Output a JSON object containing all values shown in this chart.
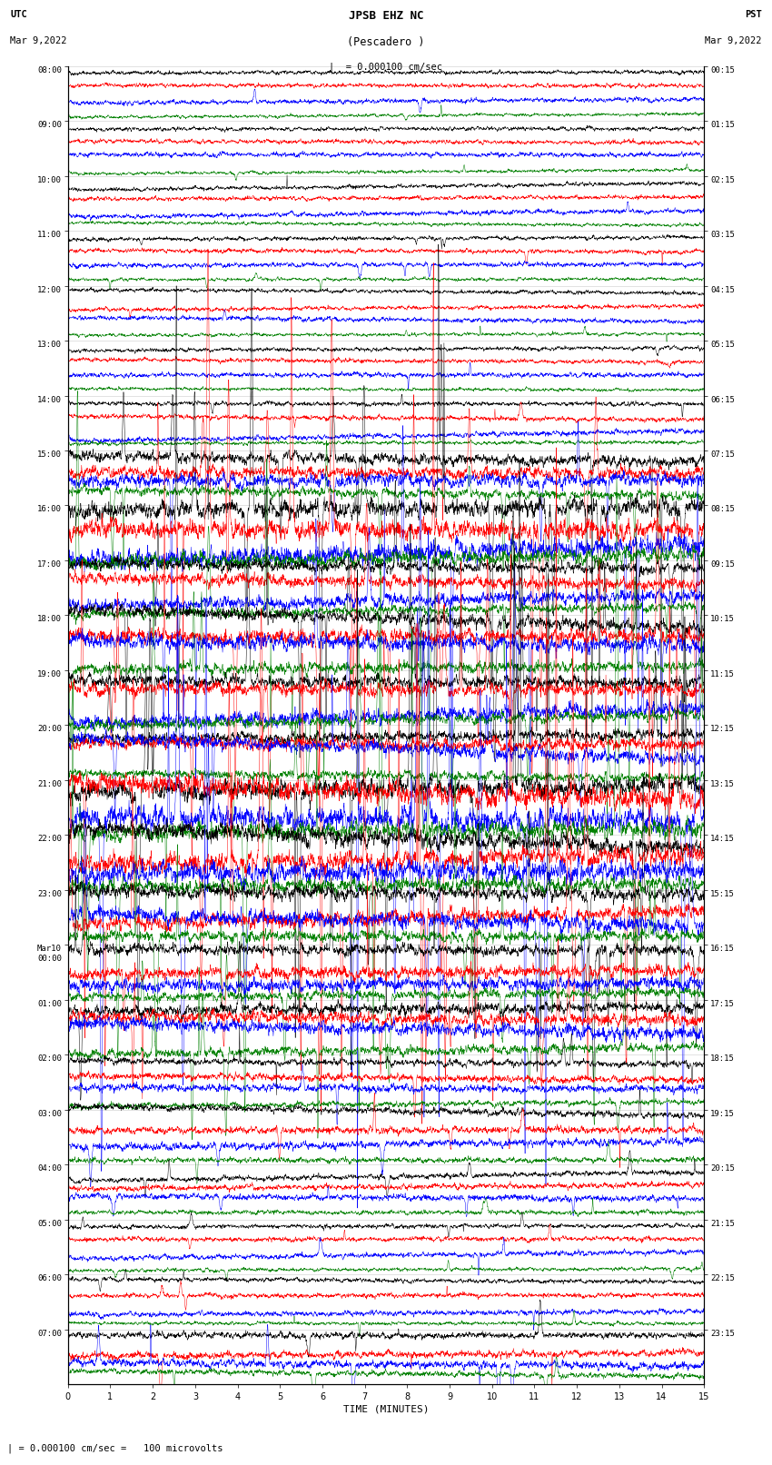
{
  "title_line1": "JPSB EHZ NC",
  "title_line2": "(Pescadero )",
  "scale_text": "= 0.000100 cm/sec",
  "bottom_text": "= 0.000100 cm/sec =   100 microvolts",
  "utc_label": "UTC",
  "utc_date": "Mar 9,2022",
  "pst_label": "PST",
  "pst_date": "Mar 9,2022",
  "xlabel": "TIME (MINUTES)",
  "xlim": [
    0,
    15
  ],
  "xticks": [
    0,
    1,
    2,
    3,
    4,
    5,
    6,
    7,
    8,
    9,
    10,
    11,
    12,
    13,
    14,
    15
  ],
  "bg_color": "#ffffff",
  "trace_colors": [
    "#000000",
    "#ff0000",
    "#0000ff",
    "#008000"
  ],
  "n_hours": 24,
  "figsize": [
    8.5,
    16.13
  ],
  "dpi": 100,
  "left_times": [
    "08:00",
    "09:00",
    "10:00",
    "11:00",
    "12:00",
    "13:00",
    "14:00",
    "15:00",
    "16:00",
    "17:00",
    "18:00",
    "19:00",
    "20:00",
    "21:00",
    "22:00",
    "23:00",
    "Mar10\n00:00",
    "01:00",
    "02:00",
    "03:00",
    "04:00",
    "05:00",
    "06:00",
    "07:00"
  ],
  "right_times": [
    "00:15",
    "01:15",
    "02:15",
    "03:15",
    "04:15",
    "05:15",
    "06:15",
    "07:15",
    "08:15",
    "09:15",
    "10:15",
    "11:15",
    "12:15",
    "13:15",
    "14:15",
    "15:15",
    "16:15",
    "17:15",
    "18:15",
    "19:15",
    "20:15",
    "21:15",
    "22:15",
    "23:15"
  ]
}
